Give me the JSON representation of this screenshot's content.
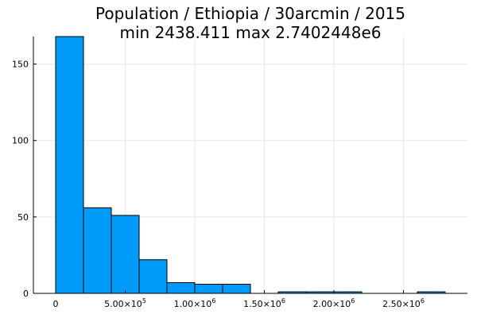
{
  "chart_data": {
    "type": "bar",
    "title_line1": "Population / Ethiopia / 30arcmin / 2015",
    "title_line2": "min 2438.411  max 2.7402448e6",
    "xlabel": "",
    "ylabel": "",
    "bin_width": 200000,
    "bins": [
      {
        "x0": 0,
        "x1": 200000,
        "count": 168
      },
      {
        "x0": 200000,
        "x1": 400000,
        "count": 56
      },
      {
        "x0": 400000,
        "x1": 600000,
        "count": 51
      },
      {
        "x0": 600000,
        "x1": 800000,
        "count": 22
      },
      {
        "x0": 800000,
        "x1": 1000000,
        "count": 7
      },
      {
        "x0": 1000000,
        "x1": 1200000,
        "count": 6
      },
      {
        "x0": 1200000,
        "x1": 1400000,
        "count": 6
      },
      {
        "x0": 1600000,
        "x1": 1800000,
        "count": 1
      },
      {
        "x0": 1800000,
        "x1": 2000000,
        "count": 1
      },
      {
        "x0": 2000000,
        "x1": 2200000,
        "count": 1
      },
      {
        "x0": 2600000,
        "x1": 2800000,
        "count": 1
      }
    ],
    "xlim": [
      -160000,
      2960000
    ],
    "ylim": [
      0,
      168
    ],
    "x_ticks": [
      {
        "value": 0,
        "mantissa": "0",
        "exponent": ""
      },
      {
        "value": 500000,
        "mantissa": "5.00×10",
        "exponent": "5"
      },
      {
        "value": 1000000,
        "mantissa": "1.00×10",
        "exponent": "6"
      },
      {
        "value": 1500000,
        "mantissa": "1.50×10",
        "exponent": "6"
      },
      {
        "value": 2000000,
        "mantissa": "2.00×10",
        "exponent": "6"
      },
      {
        "value": 2500000,
        "mantissa": "2.50×10",
        "exponent": "6"
      }
    ],
    "y_ticks": [
      {
        "value": 0,
        "label": "0"
      },
      {
        "value": 50,
        "label": "50"
      },
      {
        "value": 100,
        "label": "100"
      },
      {
        "value": 150,
        "label": "150"
      }
    ],
    "grid": true,
    "legend": "none",
    "colors": {
      "bar_fill": "#009af9",
      "bar_stroke": "#000000",
      "grid": "#e8e8e8"
    }
  }
}
